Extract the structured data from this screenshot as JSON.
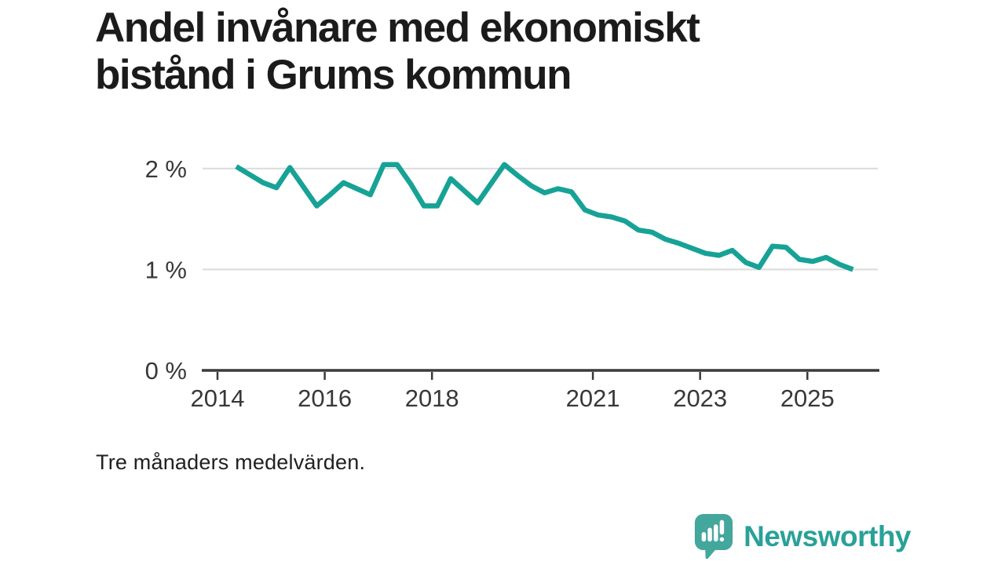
{
  "header": {
    "title_lines": [
      "Andel invånare med ekonomiskt",
      "bistånd i Grums kommun"
    ]
  },
  "note": "Tre månaders medelvärden.",
  "footer": {
    "brand": "Newsworthy"
  },
  "colors": {
    "line": "#17a296",
    "grid": "#dadada",
    "axis": "#3a3a3a",
    "tick_text": "#383838",
    "title_text": "#1b1b1b",
    "logo_icon": "#43a79c",
    "brand_text": "#2aa198"
  },
  "chart_data": {
    "type": "line",
    "title": "Andel invånare med ekonomiskt bistånd i Grums kommun",
    "subtitle": "Tre månaders medelvärden.",
    "unit": "%",
    "grid": "horizontal gridlines at 1% and 2%",
    "legend": "none",
    "xlim": [
      2013.9,
      2026.4
    ],
    "ylim": [
      0,
      2.3
    ],
    "x_ticks": [
      2014,
      2016,
      2018,
      2021,
      2023,
      2025
    ],
    "y_ticks": [
      {
        "value": 0,
        "label": "0 %"
      },
      {
        "value": 1,
        "label": "1 %"
      },
      {
        "value": 2,
        "label": "2 %"
      }
    ],
    "series": [
      {
        "name": "Andel invånare med ekonomiskt bistånd",
        "x": [
          2014.35,
          2014.6,
          2014.85,
          2015.1,
          2015.35,
          2015.6,
          2015.85,
          2016.1,
          2016.35,
          2016.6,
          2016.85,
          2017.1,
          2017.35,
          2017.6,
          2017.85,
          2018.1,
          2018.35,
          2018.6,
          2018.85,
          2019.1,
          2019.35,
          2019.6,
          2019.85,
          2020.1,
          2020.35,
          2020.6,
          2020.85,
          2021.1,
          2021.35,
          2021.6,
          2021.85,
          2022.1,
          2022.35,
          2022.6,
          2022.85,
          2023.1,
          2023.35,
          2023.6,
          2023.85,
          2024.1,
          2024.35,
          2024.6,
          2024.85,
          2025.1,
          2025.35,
          2025.6,
          2025.85
        ],
        "y": [
          2.02,
          1.94,
          1.86,
          1.81,
          2.01,
          1.82,
          1.63,
          1.74,
          1.86,
          1.8,
          1.74,
          2.04,
          2.04,
          1.85,
          1.63,
          1.63,
          1.9,
          1.78,
          1.66,
          1.85,
          2.04,
          1.93,
          1.83,
          1.76,
          1.8,
          1.77,
          1.59,
          1.54,
          1.52,
          1.48,
          1.39,
          1.37,
          1.3,
          1.26,
          1.21,
          1.16,
          1.14,
          1.19,
          1.07,
          1.02,
          1.23,
          1.22,
          1.1,
          1.08,
          1.12,
          1.05,
          1.0
        ]
      }
    ]
  }
}
